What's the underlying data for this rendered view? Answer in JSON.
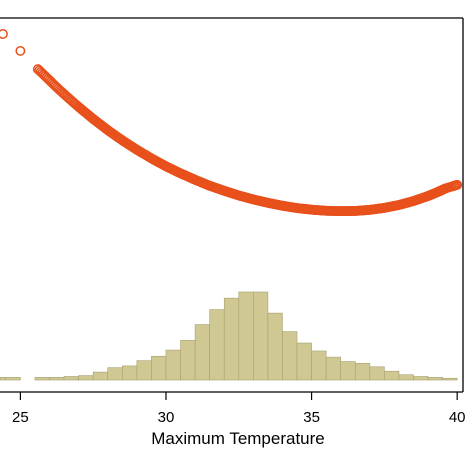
{
  "chart_data": {
    "type": "scatter",
    "xlabel": "Maximum Temperature",
    "xlim": [
      24.3,
      40.2
    ],
    "x_ticks": [
      25,
      30,
      35,
      40
    ],
    "colors": {
      "points": "#e8501c",
      "histogram_fill": "#cfc893",
      "histogram_edge": "#a8a070",
      "frame": "#000000"
    },
    "curve_points": {
      "x": [
        24.4,
        25.0,
        25.6,
        25.8,
        26.0,
        26.2,
        26.4,
        26.6,
        26.8,
        27.0,
        27.5,
        28.0,
        28.5,
        29.0,
        29.5,
        30.0,
        30.5,
        31.0,
        31.5,
        32.0,
        32.5,
        33.0,
        33.5,
        34.0,
        34.5,
        35.0,
        35.5,
        36.0,
        36.5,
        37.0,
        37.5,
        38.0,
        38.5,
        39.0,
        39.3,
        39.6,
        39.8,
        40.0
      ],
      "y": [
        0.0,
        0.094,
        0.195,
        0.226,
        0.257,
        0.289,
        0.319,
        0.348,
        0.377,
        0.405,
        0.472,
        0.534,
        0.591,
        0.643,
        0.691,
        0.735,
        0.774,
        0.81,
        0.843,
        0.871,
        0.897,
        0.919,
        0.938,
        0.954,
        0.967,
        0.976,
        0.982,
        0.984,
        0.983,
        0.977,
        0.966,
        0.95,
        0.928,
        0.9,
        0.88,
        0.858,
        0.848,
        0.838
      ]
    },
    "histogram": {
      "bin_width": 0.5,
      "bins": [
        {
          "x": 24.0,
          "count": 3
        },
        {
          "x": 24.5,
          "count": 3
        },
        {
          "x": 25.5,
          "count": 3
        },
        {
          "x": 26.0,
          "count": 3
        },
        {
          "x": 26.5,
          "count": 4
        },
        {
          "x": 27.0,
          "count": 5
        },
        {
          "x": 27.5,
          "count": 9
        },
        {
          "x": 28.0,
          "count": 14
        },
        {
          "x": 28.5,
          "count": 16
        },
        {
          "x": 29.0,
          "count": 22
        },
        {
          "x": 29.5,
          "count": 27
        },
        {
          "x": 30.0,
          "count": 34
        },
        {
          "x": 30.5,
          "count": 45
        },
        {
          "x": 31.0,
          "count": 63
        },
        {
          "x": 31.5,
          "count": 80
        },
        {
          "x": 32.0,
          "count": 93
        },
        {
          "x": 32.5,
          "count": 100
        },
        {
          "x": 33.0,
          "count": 100
        },
        {
          "x": 33.5,
          "count": 76
        },
        {
          "x": 34.0,
          "count": 55
        },
        {
          "x": 34.5,
          "count": 42
        },
        {
          "x": 35.0,
          "count": 33
        },
        {
          "x": 35.5,
          "count": 26
        },
        {
          "x": 36.0,
          "count": 21
        },
        {
          "x": 36.5,
          "count": 19
        },
        {
          "x": 37.0,
          "count": 15
        },
        {
          "x": 37.5,
          "count": 10
        },
        {
          "x": 38.0,
          "count": 6
        },
        {
          "x": 38.5,
          "count": 4
        },
        {
          "x": 39.0,
          "count": 3
        },
        {
          "x": 39.5,
          "count": 2
        }
      ]
    }
  }
}
